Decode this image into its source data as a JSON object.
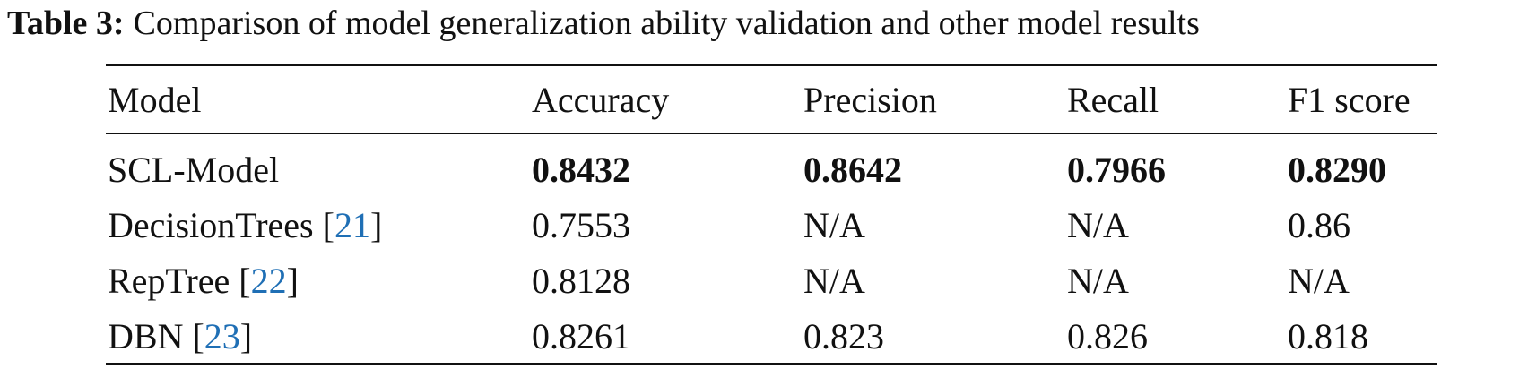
{
  "caption": {
    "label": "Table 3:",
    "text": "Comparison of model generalization ability validation and other model results"
  },
  "table": {
    "header": [
      "Model",
      "Accuracy",
      "Precision",
      "Recall",
      "F1 score"
    ],
    "rows": [
      {
        "model": [
          "SCL-Model"
        ],
        "cells": [
          "0.8432",
          "0.8642",
          "0.7966",
          "0.8290"
        ],
        "bold": true
      },
      {
        "model": [
          "DecisionTrees [",
          "21",
          "]"
        ],
        "cells": [
          "0.7553",
          "N/A",
          "N/A",
          "0.86"
        ],
        "bold": false
      },
      {
        "model": [
          "RepTree [",
          "22",
          "]"
        ],
        "cells": [
          "0.8128",
          "N/A",
          "N/A",
          "N/A"
        ],
        "bold": false
      },
      {
        "model": [
          "DBN [",
          "23",
          "]"
        ],
        "cells": [
          "0.8261",
          "0.823",
          "0.826",
          "0.818"
        ],
        "bold": false
      }
    ]
  }
}
